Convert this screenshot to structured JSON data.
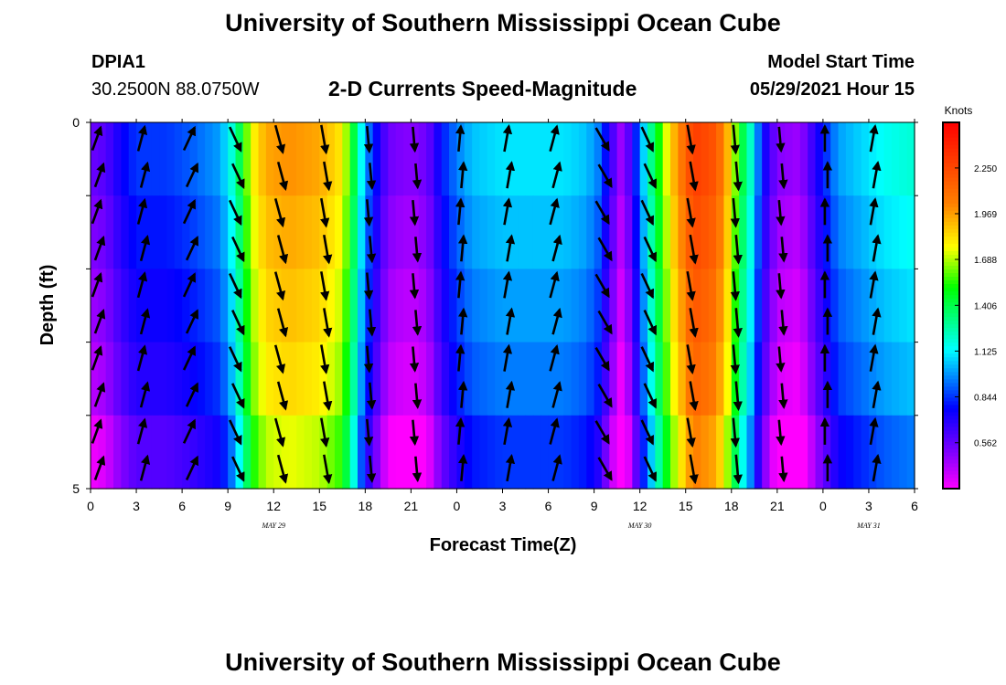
{
  "header": {
    "title": "University of Southern Mississippi Ocean Cube",
    "station": "DPIA1",
    "coords": "30.2500N  88.0750W",
    "subtitle": "2-D Currents Speed-Magnitude",
    "model_start_label": "Model Start Time",
    "model_start_value": "05/29/2021 Hour 15",
    "footer_title": "University of Southern Mississippi Ocean Cube"
  },
  "chart_data": {
    "type": "heatmap",
    "title": "2-D Currents Speed-Magnitude",
    "xlabel": "Forecast Time(Z)",
    "ylabel": "Depth (ft)",
    "x_tick_labels": [
      "0",
      "3",
      "6",
      "9",
      "12",
      "15",
      "18",
      "21",
      "0",
      "3",
      "6",
      "9",
      "12",
      "15",
      "18",
      "21",
      "0",
      "3",
      "6"
    ],
    "x_range_hours": [
      0,
      54
    ],
    "y_range": [
      0,
      5
    ],
    "y_tick_labels": [
      "0",
      "5"
    ],
    "day_labels": [
      {
        "text": "MAY  29",
        "hour": 12
      },
      {
        "text": "MAY  30",
        "hour": 36
      },
      {
        "text": "MAY  31",
        "hour": 51
      }
    ],
    "depth_levels": 5,
    "colorbar": {
      "unit": "Knots",
      "min": 0.28,
      "max": 2.53,
      "ticks": [
        0.562,
        0.844,
        1.125,
        1.406,
        1.688,
        1.969,
        2.25
      ],
      "tick_labels": [
        "0.562",
        "0.844",
        "1.125",
        "1.406",
        "1.688",
        "1.969",
        "2.250"
      ]
    },
    "speed_profile": {
      "hours": [
        0,
        1,
        2,
        3,
        5,
        6.5,
        7.5,
        8.5,
        9.3,
        9.9,
        10.5,
        11.5,
        13,
        15,
        16.5,
        17.3,
        18,
        18.8,
        19.5,
        20.5,
        21.5,
        22.3,
        23,
        24,
        25,
        27,
        29,
        31,
        32.5,
        33.3,
        34,
        34.7,
        35.3,
        36.5,
        38,
        39.5,
        41,
        41.8,
        42.5,
        43.3,
        44,
        45,
        46.5,
        47.5,
        49,
        52,
        54
      ],
      "speeds": [
        0.55,
        0.6,
        0.75,
        0.85,
        0.85,
        0.9,
        0.95,
        1.0,
        1.2,
        1.45,
        1.75,
        1.95,
        2.0,
        1.95,
        1.8,
        1.4,
        1.0,
        0.75,
        0.55,
        0.5,
        0.5,
        0.6,
        0.8,
        0.95,
        1.05,
        1.1,
        1.1,
        1.1,
        1.05,
        0.95,
        0.7,
        0.45,
        0.6,
        1.2,
        1.85,
        2.3,
        2.2,
        1.9,
        1.5,
        1.2,
        0.8,
        0.5,
        0.45,
        0.7,
        1.0,
        1.15,
        1.2
      ]
    },
    "depth_attenuation": [
      0,
      -0.05,
      -0.1,
      -0.15,
      -0.25
    ],
    "vectors": {
      "hours": [
        0,
        3,
        6,
        9,
        12,
        15,
        18,
        21,
        24,
        27,
        30,
        33,
        36,
        39,
        42,
        45,
        48,
        51
      ],
      "angles_deg": [
        20,
        15,
        25,
        155,
        165,
        170,
        175,
        175,
        5,
        10,
        15,
        150,
        155,
        170,
        175,
        175,
        0,
        10
      ],
      "speeds": [
        0.55,
        0.85,
        0.85,
        1.2,
        1.95,
        1.95,
        1.0,
        0.5,
        0.95,
        1.1,
        1.1,
        0.95,
        1.2,
        2.3,
        1.9,
        0.5,
        1.0,
        1.15
      ]
    }
  }
}
